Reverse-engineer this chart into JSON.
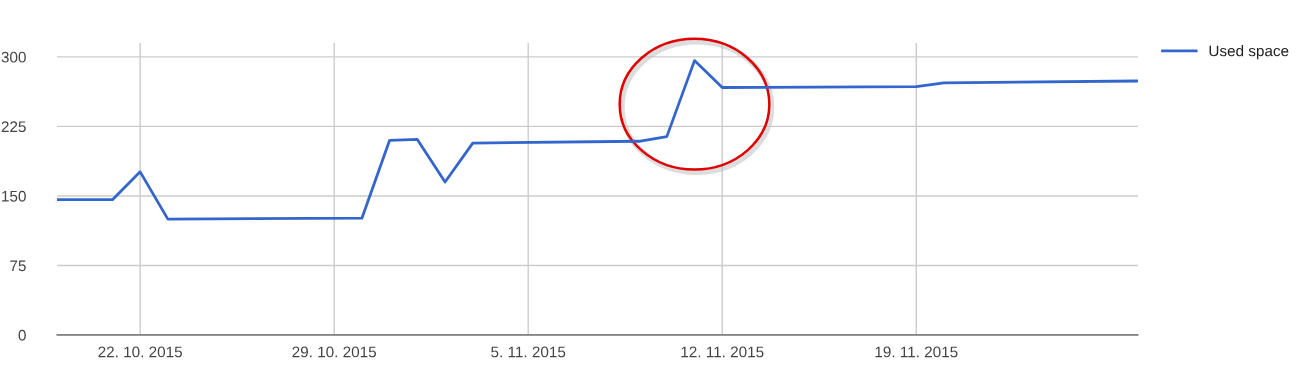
{
  "chart_data": {
    "type": "line",
    "x": [
      "2015-10-19",
      "2015-10-21",
      "2015-10-22",
      "2015-10-23",
      "2015-10-30",
      "2015-10-31",
      "2015-11-01",
      "2015-11-02",
      "2015-11-03",
      "2015-11-09",
      "2015-11-10",
      "2015-11-11",
      "2015-11-12",
      "2015-11-19",
      "2015-11-20",
      "2015-11-27"
    ],
    "series": [
      {
        "name": "Used space",
        "color": "#3366cc",
        "values": [
          146,
          146,
          176,
          125,
          126,
          210,
          211,
          165,
          207,
          209,
          214,
          296,
          267,
          268,
          272,
          274
        ]
      }
    ],
    "xlim": [
      "2015-10-19",
      "2015-11-27"
    ],
    "xticks": [
      {
        "value": "2015-10-22",
        "label": "22. 10. 2015"
      },
      {
        "value": "2015-10-29",
        "label": "29. 10. 2015"
      },
      {
        "value": "2015-11-05",
        "label": "5. 11. 2015"
      },
      {
        "value": "2015-11-12",
        "label": "12. 11. 2015"
      },
      {
        "value": "2015-11-19",
        "label": "19. 11. 2015"
      }
    ],
    "ylim": [
      0,
      315
    ],
    "yticks": [
      0,
      75,
      150,
      225,
      300
    ],
    "grid": true,
    "legend": "top right",
    "marker": "none",
    "line_style": "solid"
  }
}
